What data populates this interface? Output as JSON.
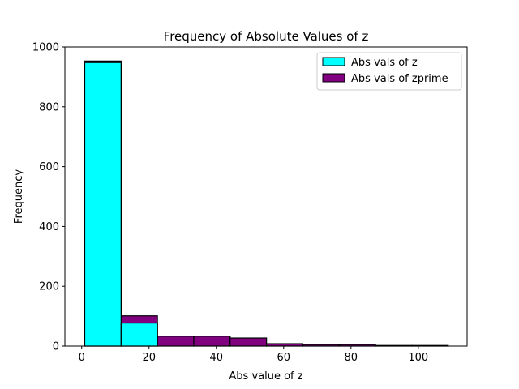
{
  "chart_data": {
    "type": "bar",
    "title": "Frequency of Absolute Values of z",
    "xlabel": "Abs value of z",
    "ylabel": "Frequency",
    "xlim": [
      -5,
      114.5
    ],
    "ylim": [
      0,
      1000
    ],
    "xticks": [
      "0",
      "20",
      "40",
      "60",
      "80",
      "100"
    ],
    "yticks": [
      "0",
      "200",
      "400",
      "600",
      "800",
      "1000"
    ],
    "grid": false,
    "legend_placement": "top-right",
    "series": [
      {
        "name": "Abs vals of zprime",
        "color": "#800080",
        "bins": [
          {
            "x0": 0.9,
            "x1": 11.7,
            "value": 953
          },
          {
            "x0": 11.7,
            "x1": 22.5,
            "value": 101
          },
          {
            "x0": 22.5,
            "x1": 33.3,
            "value": 33
          },
          {
            "x0": 33.3,
            "x1": 44.1,
            "value": 33
          },
          {
            "x0": 44.1,
            "x1": 54.9,
            "value": 27
          },
          {
            "x0": 54.9,
            "x1": 65.7,
            "value": 8
          },
          {
            "x0": 65.7,
            "x1": 76.5,
            "value": 5
          },
          {
            "x0": 76.5,
            "x1": 87.3,
            "value": 5
          },
          {
            "x0": 87.3,
            "x1": 98.1,
            "value": 2
          },
          {
            "x0": 98.1,
            "x1": 108.9,
            "value": 2
          }
        ]
      },
      {
        "name": "Abs vals of z",
        "color": "#00FFFF",
        "bins": [
          {
            "x0": 0.9,
            "x1": 11.7,
            "value": 948
          },
          {
            "x0": 11.7,
            "x1": 22.5,
            "value": 77
          }
        ]
      }
    ],
    "legend_order": [
      1,
      0
    ]
  }
}
